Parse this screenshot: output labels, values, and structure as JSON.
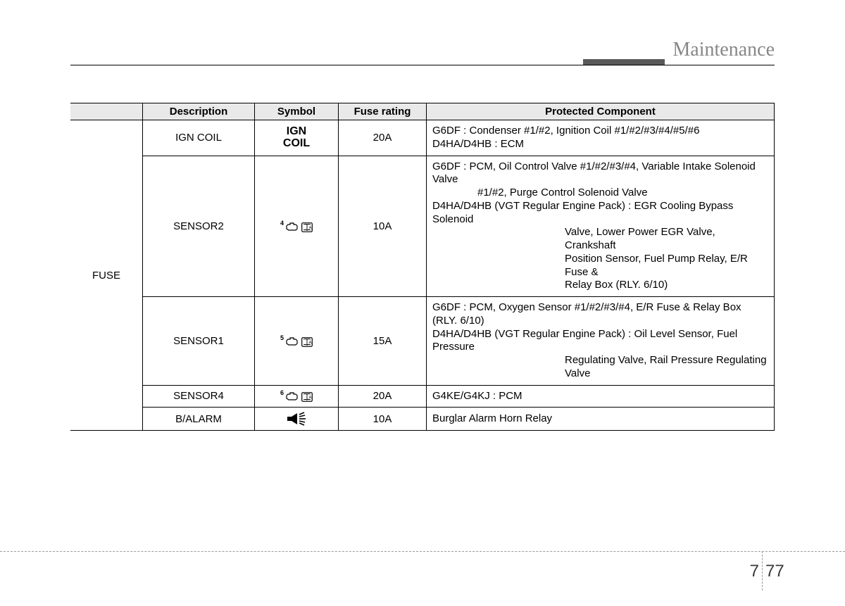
{
  "header": {
    "title": "Maintenance"
  },
  "footer": {
    "chapter": "7",
    "page": "77"
  },
  "table": {
    "columns": [
      "Description",
      "Symbol",
      "Fuse rating",
      "Protected Component"
    ],
    "group_label": "FUSE",
    "rows": [
      {
        "desc": "IGN COIL",
        "symbol": {
          "kind": "text",
          "line1": "IGN",
          "line2": "COIL"
        },
        "rating": "20A",
        "prot": [
          {
            "text": "G6DF : Condenser #1/#2, Ignition Coil #1/#2/#3/#4/#5/#6",
            "indent": 0
          },
          {
            "text": "D4HA/D4HB : ECM",
            "indent": 0
          }
        ]
      },
      {
        "desc": "SENSOR2",
        "symbol": {
          "kind": "icon",
          "num": "4"
        },
        "rating": "10A",
        "prot": [
          {
            "text": "G6DF : PCM, Oil Control Valve #1/#2/#3/#4, Variable Intake Solenoid Valve",
            "indent": 0
          },
          {
            "text": "#1/#2, Purge Control Solenoid Valve",
            "indent": 1
          },
          {
            "text": "D4HA/D4HB (VGT Regular Engine Pack) : EGR Cooling Bypass Solenoid",
            "indent": 0
          },
          {
            "text": "Valve, Lower Power EGR Valve, Crankshaft",
            "indent": 2
          },
          {
            "text": "Position Sensor, Fuel Pump Relay, E/R Fuse &",
            "indent": 2
          },
          {
            "text": "Relay Box (RLY. 6/10)",
            "indent": 2
          }
        ]
      },
      {
        "desc": "SENSOR1",
        "symbol": {
          "kind": "icon",
          "num": "5"
        },
        "rating": "15A",
        "prot": [
          {
            "text": "G6DF : PCM, Oxygen Sensor #1/#2/#3/#4, E/R Fuse & Relay Box (RLY. 6/10)",
            "indent": 0
          },
          {
            "text": "D4HA/D4HB (VGT Regular Engine Pack) : Oil Level Sensor, Fuel Pressure",
            "indent": 0
          },
          {
            "text": "Regulating Valve, Rail Pressure Regulating Valve",
            "indent": 2
          }
        ]
      },
      {
        "desc": "SENSOR4",
        "symbol": {
          "kind": "icon",
          "num": "6"
        },
        "rating": "20A",
        "prot": [
          {
            "text": "G4KE/G4KJ : PCM",
            "indent": 0
          }
        ]
      },
      {
        "desc": "B/ALARM",
        "symbol": {
          "kind": "horn"
        },
        "rating": "10A",
        "prot": [
          {
            "text": "Burglar Alarm Horn Relay",
            "indent": 0
          }
        ]
      }
    ]
  },
  "colors": {
    "header_text": "#878787",
    "header_bar": "#595959",
    "th_bg": "#e9e9e9",
    "dash": "#9a9a9a"
  }
}
